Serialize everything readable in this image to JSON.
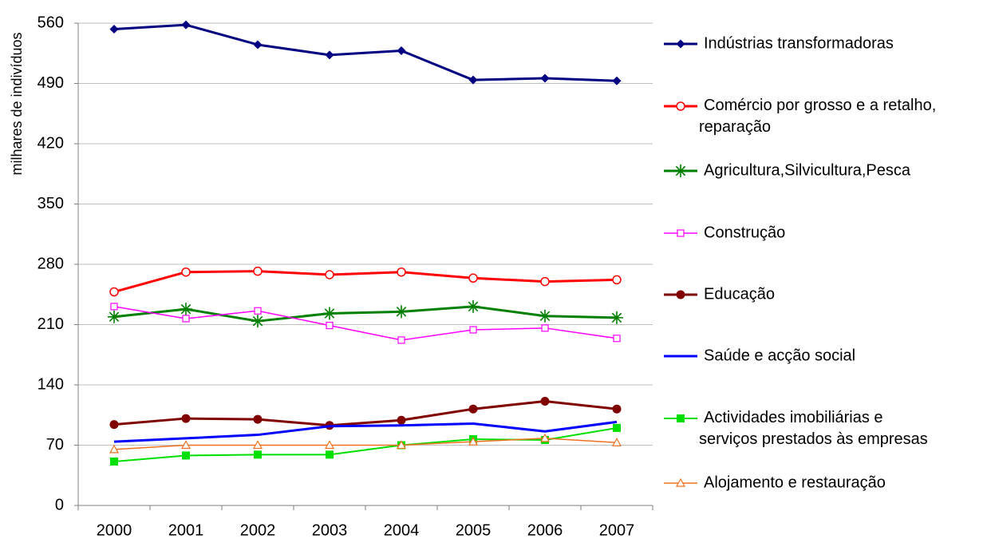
{
  "chart_data": {
    "type": "line",
    "y_label": "milhares de indivíduos",
    "categories": [
      "2000",
      "2001",
      "2002",
      "2003",
      "2004",
      "2005",
      "2006",
      "2007"
    ],
    "ylim": [
      0,
      560
    ],
    "yticks": [
      0,
      70,
      140,
      210,
      280,
      350,
      420,
      490,
      560
    ],
    "grid": true,
    "legend": "right",
    "series": [
      {
        "name": "Indústrias transformadoras",
        "color": "#000080",
        "marker": "diamond",
        "values": [
          553,
          558,
          535,
          523,
          528,
          494,
          496,
          493
        ]
      },
      {
        "name": "Comércio por grosso e a retalho, reparação",
        "color": "#ff0000",
        "marker": "open-circle",
        "values": [
          248,
          271,
          272,
          268,
          271,
          264,
          260,
          262
        ]
      },
      {
        "name": "Agricultura,Silvicultura,Pesca",
        "color": "#008000",
        "marker": "asterisk",
        "values": [
          219,
          228,
          214,
          223,
          225,
          231,
          220,
          218
        ]
      },
      {
        "name": "Construção",
        "color": "#ff00ff",
        "marker": "open-square",
        "values": [
          231,
          217,
          226,
          209,
          192,
          204,
          206,
          194
        ]
      },
      {
        "name": "Educação",
        "color": "#800000",
        "marker": "circle",
        "values": [
          94,
          101,
          100,
          93,
          99,
          112,
          121,
          112
        ]
      },
      {
        "name": "Saúde e acção social",
        "color": "#0000ff",
        "marker": "none",
        "values": [
          74,
          78,
          82,
          92,
          93,
          95,
          86,
          97
        ]
      },
      {
        "name": "Actividades imobiliárias e serviços prestados às empresas",
        "color": "#00e000",
        "marker": "square",
        "values": [
          51,
          58,
          59,
          59,
          70,
          77,
          76,
          90
        ]
      },
      {
        "name": "Alojamento e restauração",
        "color": "#f07020",
        "marker": "open-triangle",
        "values": [
          65,
          70,
          70,
          70,
          70,
          74,
          78,
          73
        ]
      }
    ]
  }
}
